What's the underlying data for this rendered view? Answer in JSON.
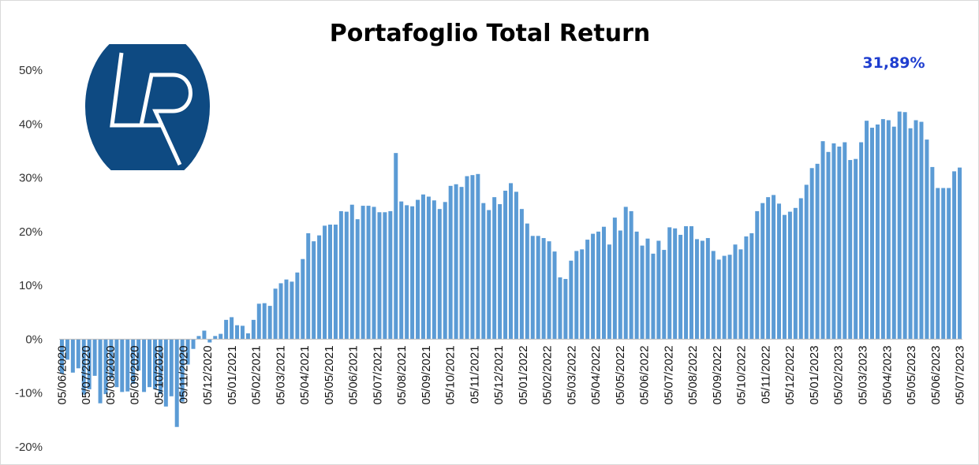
{
  "chart_data": {
    "type": "bar",
    "title": "Portafoglio Total Return",
    "annotation": "31,89%",
    "annotation_color": "#1f3ecf",
    "bar_color": "#5b9bd5",
    "logo_color": "#0e4a82",
    "xlabel": "",
    "ylabel": "",
    "ylim": [
      -20,
      50
    ],
    "y_ticks": [
      "-20%",
      "-10%",
      "0%",
      "10%",
      "20%",
      "30%",
      "40%",
      "50%"
    ],
    "y_tick_values": [
      -20,
      -10,
      0,
      10,
      20,
      30,
      40,
      50
    ],
    "x_tick_labels": [
      "05/06/2020",
      "05/07/2020",
      "05/08/2020",
      "05/09/2020",
      "05/10/2020",
      "05/11/2020",
      "05/12/2020",
      "05/01/2021",
      "05/02/2021",
      "05/03/2021",
      "05/04/2021",
      "05/05/2021",
      "05/06/2021",
      "05/07/2021",
      "05/08/2021",
      "05/09/2021",
      "05/10/2021",
      "05/11/2021",
      "05/12/2021",
      "05/01/2022",
      "05/02/2022",
      "05/03/2022",
      "05/04/2022",
      "05/05/2022",
      "05/06/2022",
      "05/07/2022",
      "05/08/2022",
      "05/09/2022",
      "05/10/2022",
      "05/11/2022",
      "05/12/2022",
      "05/01/2023",
      "05/02/2023",
      "05/03/2023",
      "05/04/2023",
      "05/05/2023",
      "05/06/2023",
      "05/07/2023"
    ],
    "grid": false,
    "legend": "none",
    "values": [
      -6.4,
      -3.8,
      -6.2,
      -5.4,
      -10.3,
      -9.3,
      -6.8,
      -11.9,
      -10.2,
      -7.3,
      -8.9,
      -9.8,
      -9.7,
      -8.3,
      -5.8,
      -9.8,
      -8.9,
      -9.3,
      -10.2,
      -12.5,
      -10.6,
      -16.3,
      -11.6,
      -4.7,
      -1.8,
      0.6,
      1.6,
      -0.6,
      0.6,
      1.0,
      3.6,
      4.1,
      2.6,
      2.5,
      1.1,
      3.6,
      6.6,
      6.7,
      6.2,
      9.4,
      10.4,
      11.1,
      10.7,
      12.4,
      14.9,
      19.7,
      18.2,
      19.3,
      21.1,
      21.3,
      21.3,
      23.8,
      23.7,
      25.0,
      22.3,
      24.8,
      24.8,
      24.6,
      23.6,
      23.6,
      23.8,
      34.6,
      25.6,
      24.9,
      24.7,
      25.9,
      26.9,
      26.5,
      25.8,
      24.2,
      25.5,
      28.5,
      28.8,
      28.3,
      30.3,
      30.5,
      30.7,
      25.3,
      24.0,
      26.4,
      25.1,
      27.6,
      29.0,
      27.4,
      24.2,
      21.5,
      19.2,
      19.2,
      18.8,
      18.2,
      16.3,
      11.5,
      11.2,
      14.6,
      16.4,
      16.7,
      18.5,
      19.6,
      20.0,
      20.9,
      17.6,
      22.6,
      20.2,
      24.6,
      23.8,
      20.0,
      17.4,
      18.7,
      15.9,
      18.3,
      16.6,
      20.8,
      20.6,
      19.4,
      21.0,
      21.0,
      18.6,
      18.3,
      18.8,
      16.4,
      14.8,
      15.5,
      15.7,
      17.6,
      16.7,
      19.1,
      19.7,
      23.8,
      25.3,
      26.4,
      26.8,
      25.2,
      23.1,
      23.7,
      24.4,
      26.2,
      28.7,
      31.8,
      32.6,
      36.8,
      34.8,
      36.4,
      35.8,
      36.6,
      33.3,
      33.5,
      36.6,
      40.6,
      39.3,
      39.9,
      40.9,
      40.7,
      39.5,
      42.3,
      42.2,
      39.2,
      40.7,
      40.4,
      37.1,
      32.0,
      28.1,
      28.1,
      28.1,
      31.2,
      31.9
    ]
  }
}
